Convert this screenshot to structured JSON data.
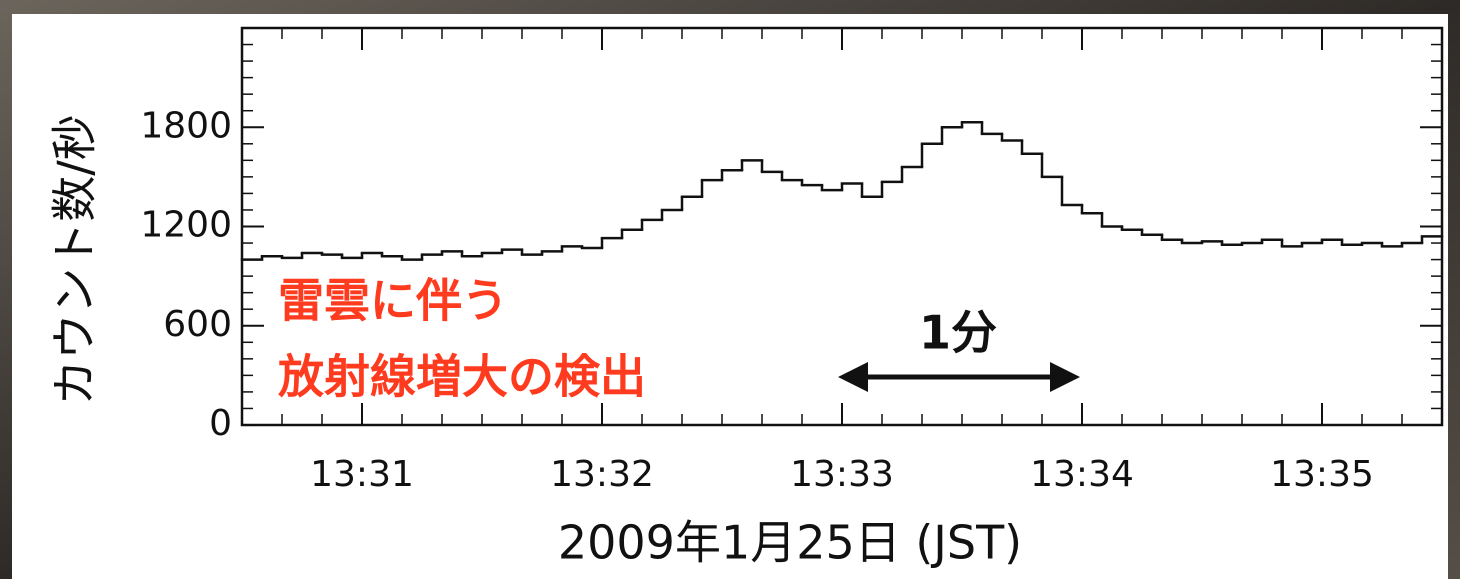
{
  "chart_data": {
    "type": "step",
    "y_label": "カウント数/秒",
    "x_label": "2009年1月25日 (JST)",
    "annotation": [
      "雷雲に伴う",
      "放射線増大の検出"
    ],
    "arrow_label": "1分",
    "color": "#111111",
    "annotation_color": "#ff3b1f",
    "x": [
      30,
      35,
      40,
      45,
      50,
      55,
      60,
      65,
      70,
      75,
      80,
      85,
      90,
      95,
      100,
      105,
      110,
      115,
      120,
      125,
      130,
      135,
      140,
      145,
      150,
      155,
      160,
      165,
      170,
      175,
      180,
      185,
      190,
      195,
      200,
      205,
      210,
      215,
      220,
      225,
      230,
      235,
      240,
      245,
      250,
      255,
      260,
      265,
      270,
      275,
      280,
      285,
      290,
      295,
      300,
      305,
      310,
      315,
      320,
      325
    ],
    "values": [
      1000,
      1020,
      1010,
      1040,
      1030,
      1010,
      1040,
      1020,
      1000,
      1030,
      1050,
      1020,
      1040,
      1060,
      1030,
      1050,
      1080,
      1070,
      1130,
      1180,
      1240,
      1300,
      1380,
      1480,
      1540,
      1600,
      1530,
      1480,
      1450,
      1420,
      1460,
      1380,
      1470,
      1560,
      1700,
      1800,
      1830,
      1760,
      1720,
      1640,
      1500,
      1330,
      1280,
      1200,
      1180,
      1150,
      1120,
      1100,
      1110,
      1090,
      1100,
      1120,
      1080,
      1100,
      1120,
      1090,
      1100,
      1080,
      1100,
      1140
    ],
    "xlim": [
      30,
      330
    ],
    "xticks": [
      {
        "value": 60,
        "label": "13:31"
      },
      {
        "value": 120,
        "label": "13:32"
      },
      {
        "value": 180,
        "label": "13:33"
      },
      {
        "value": 240,
        "label": "13:34"
      },
      {
        "value": 300,
        "label": "13:35"
      }
    ],
    "ylim": [
      0,
      2400
    ],
    "yticks": [
      0,
      600,
      1200,
      1800
    ]
  }
}
